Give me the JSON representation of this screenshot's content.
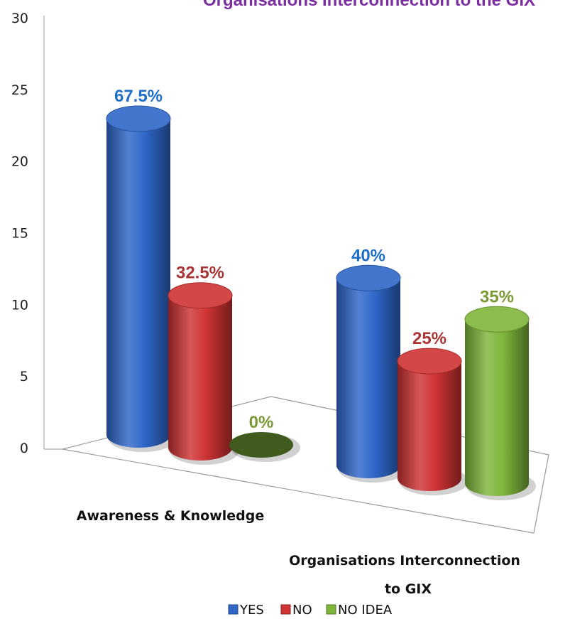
{
  "chart_data": {
    "type": "bar",
    "title": "Organisations Interconnection to the GIX",
    "categories": [
      "Awareness & Knowledge",
      "Organisations Interconnection to GIX"
    ],
    "category_lines": [
      [
        "Awareness & Knowledge"
      ],
      [
        "Organisations Interconnection",
        "to GIX"
      ]
    ],
    "series": [
      {
        "name": "YES",
        "values": [
          27,
          16
        ],
        "labels": [
          "67.5%",
          "40%"
        ],
        "color": "#2f67c9",
        "label_color": "#1f6fc9"
      },
      {
        "name": "NO",
        "values": [
          13,
          10
        ],
        "labels": [
          "32.5%",
          "25%"
        ],
        "color": "#cf3333",
        "label_color": "#a93434"
      },
      {
        "name": "NO IDEA",
        "values": [
          0,
          14
        ],
        "labels": [
          "0%",
          "35%"
        ],
        "color": "#7fb53a",
        "label_color": "#7b9a36"
      }
    ],
    "ylim": [
      0,
      30
    ],
    "yticks": [
      "0",
      "5",
      "10",
      "15",
      "20",
      "25",
      "30"
    ],
    "grid": false,
    "legend_position": "bottom",
    "title_color": "#7a2ea0"
  }
}
